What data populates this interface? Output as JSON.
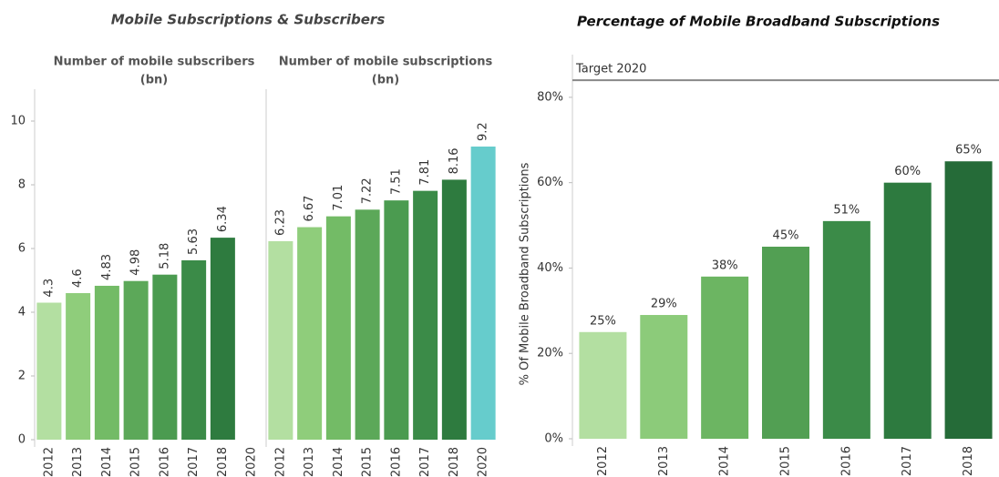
{
  "chart_data": [
    {
      "type": "panel-bar",
      "title": "Mobile Subscriptions & Subscribers",
      "ylim": [
        0,
        11
      ],
      "yticks": [
        0,
        2,
        4,
        6,
        8,
        10
      ],
      "panels": [
        {
          "subtitle": [
            "Number of mobile subscribers",
            "(bn)"
          ],
          "categories": [
            "2012",
            "2013",
            "2014",
            "2015",
            "2016",
            "2017",
            "2018",
            "2020"
          ],
          "values": [
            4.3,
            4.6,
            4.83,
            4.98,
            5.18,
            5.63,
            6.34,
            null
          ],
          "colors": [
            "#b3dfa1",
            "#8fcd7b",
            "#73bb66",
            "#5ca859",
            "#4b9b50",
            "#3b8b48",
            "#2e7b3f",
            "#2e7b3f"
          ]
        },
        {
          "subtitle": [
            "Number of mobile subscriptions",
            "(bn)"
          ],
          "categories": [
            "2012",
            "2013",
            "2014",
            "2015",
            "2016",
            "2017",
            "2018",
            "2020"
          ],
          "values": [
            6.23,
            6.67,
            7.01,
            7.22,
            7.51,
            7.81,
            8.16,
            9.2
          ],
          "colors": [
            "#b3dfa1",
            "#8fcd7b",
            "#73bb66",
            "#5ca859",
            "#4b9b50",
            "#3b8b48",
            "#2e7b3f",
            "#66cccc"
          ]
        }
      ]
    },
    {
      "type": "bar",
      "title": "Percentage of Mobile Broadband Subscriptions",
      "ylabel": "% Of Mobile Broadband Subscriptions",
      "categories": [
        "2012",
        "2013",
        "2014",
        "2015",
        "2016",
        "2017",
        "2018"
      ],
      "values": [
        25,
        29,
        38,
        45,
        51,
        60,
        65
      ],
      "value_labels": [
        "25%",
        "29%",
        "38%",
        "45%",
        "51%",
        "60%",
        "65%"
      ],
      "colors": [
        "#b3dfa1",
        "#8ccb7a",
        "#6cb562",
        "#529f53",
        "#3b8b48",
        "#2d7a3f",
        "#256b38"
      ],
      "ylim": [
        0,
        90
      ],
      "yticks": [
        {
          "value": 0,
          "label": "0%"
        },
        {
          "value": 20,
          "label": "20%"
        },
        {
          "value": 40,
          "label": "40%"
        },
        {
          "value": 60,
          "label": "60%"
        },
        {
          "value": 80,
          "label": "80%"
        }
      ],
      "target": {
        "label": "Target 2020",
        "value": 84
      }
    }
  ]
}
